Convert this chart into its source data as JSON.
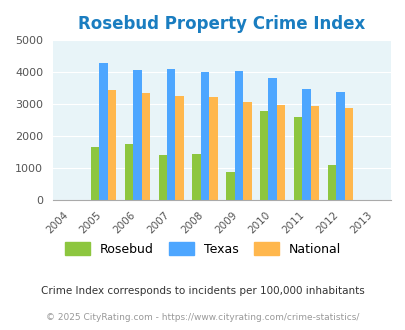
{
  "title": "Rosebud Property Crime Index",
  "all_years": [
    2004,
    2005,
    2006,
    2007,
    2008,
    2009,
    2010,
    2011,
    2012,
    2013
  ],
  "data_years": [
    2005,
    2006,
    2007,
    2008,
    2009,
    2010,
    2011,
    2012
  ],
  "rosebud": [
    1680,
    1750,
    1400,
    1450,
    870,
    2780,
    2590,
    1110
  ],
  "texas": [
    4300,
    4080,
    4100,
    4000,
    4030,
    3820,
    3490,
    3370
  ],
  "national": [
    3440,
    3350,
    3250,
    3230,
    3060,
    2960,
    2930,
    2890
  ],
  "rosebud_color": "#8dc63f",
  "texas_color": "#4da6ff",
  "national_color": "#ffb74d",
  "bg_color": "#e8f4f8",
  "ylim": [
    0,
    5000
  ],
  "yticks": [
    0,
    1000,
    2000,
    3000,
    4000,
    5000
  ],
  "footnote1": "Crime Index corresponds to incidents per 100,000 inhabitants",
  "footnote2": "© 2025 CityRating.com - https://www.cityrating.com/crime-statistics/",
  "legend_labels": [
    "Rosebud",
    "Texas",
    "National"
  ],
  "bar_width": 0.25
}
